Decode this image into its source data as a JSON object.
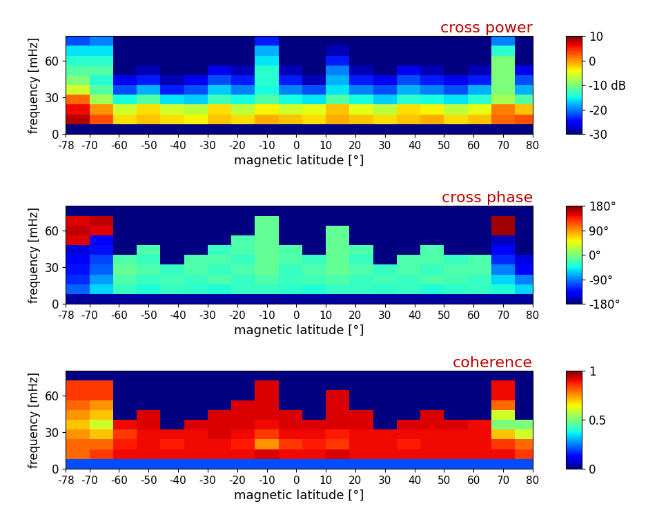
{
  "chart_data": [
    {
      "type": "heatmap",
      "title": "cross power",
      "x_label": "magnetic latitude [°]",
      "y_label": "frequency [mHz]",
      "xlim": [
        -78,
        80
      ],
      "ylim": [
        0,
        80
      ],
      "xticks": [
        -78,
        -70,
        -60,
        -50,
        -40,
        -30,
        -20,
        -10,
        0,
        10,
        20,
        30,
        40,
        50,
        60,
        70,
        80
      ],
      "yticks": [
        0,
        30,
        60
      ],
      "x_edges": [
        -78,
        -70,
        -62,
        -54,
        -46,
        -38,
        -30,
        -22,
        -14,
        -6,
        2,
        10,
        18,
        26,
        34,
        42,
        50,
        58,
        66,
        74,
        80
      ],
      "y_edges": [
        0,
        8,
        16,
        24,
        32,
        40,
        48,
        56,
        64,
        72,
        80
      ],
      "color_range": [
        -30,
        10
      ],
      "color_ticks": [
        10,
        0,
        {
          "value": -10,
          "label": "-10 dB"
        },
        -20,
        -30
      ],
      "cells": [
        [
          -30,
          -30,
          -30,
          -30,
          -30,
          -30,
          -30,
          -30,
          -30,
          -30,
          -30,
          -30,
          -30,
          -30,
          -30,
          -30,
          -30,
          -30,
          -30,
          -30
        ],
        [
          8,
          3,
          -3,
          -2,
          -3,
          -4,
          -2,
          -3,
          -1,
          -2,
          -3,
          -1,
          -2,
          -3,
          -2,
          -1,
          -3,
          -2,
          2,
          3
        ],
        [
          6,
          0,
          -6,
          -3,
          -6,
          -7,
          -3,
          -7,
          -4,
          -6,
          -5,
          -2,
          -5,
          -7,
          -3,
          -4,
          -7,
          -5,
          1,
          -2
        ],
        [
          2,
          -8,
          -15,
          -12,
          -16,
          -17,
          -13,
          -15,
          -12,
          -15,
          -16,
          -12,
          -15,
          -17,
          -14,
          -15,
          -16,
          -14,
          -8,
          -12
        ],
        [
          -6,
          -12,
          -22,
          -18,
          -24,
          -22,
          -17,
          -20,
          -15,
          -20,
          -22,
          -16,
          -20,
          -22,
          -18,
          -20,
          -22,
          -18,
          -10,
          -18
        ],
        [
          -10,
          -14,
          -26,
          -24,
          -28,
          -26,
          -22,
          -24,
          -14,
          -24,
          -28,
          -18,
          -24,
          -26,
          -22,
          -24,
          -26,
          -24,
          -10,
          -22
        ],
        [
          -12,
          -12,
          -30,
          -28,
          -30,
          -30,
          -26,
          -28,
          -14,
          -28,
          -30,
          -20,
          -28,
          -30,
          -26,
          -28,
          -30,
          -28,
          -10,
          -26
        ],
        [
          -14,
          -14,
          -30,
          -30,
          -30,
          -30,
          -30,
          -30,
          -16,
          -30,
          -30,
          -24,
          -30,
          -30,
          -30,
          -30,
          -30,
          -30,
          -10,
          -30
        ],
        [
          -16,
          -16,
          -30,
          -30,
          -30,
          -30,
          -30,
          -30,
          -18,
          -30,
          -30,
          -28,
          -30,
          -30,
          -30,
          -30,
          -30,
          -30,
          -14,
          -30
        ],
        [
          -22,
          -20,
          -30,
          -30,
          -30,
          -30,
          -30,
          -30,
          -24,
          -30,
          -30,
          -30,
          -30,
          -30,
          -30,
          -30,
          -30,
          -30,
          -20,
          -30
        ]
      ]
    },
    {
      "type": "heatmap",
      "title": "cross phase",
      "x_label": "magnetic latitude [°]",
      "y_label": "frequency [mHz]",
      "xlim": [
        -78,
        80
      ],
      "ylim": [
        0,
        80
      ],
      "xticks": [
        -78,
        -70,
        -60,
        -50,
        -40,
        -30,
        -20,
        -10,
        0,
        10,
        20,
        30,
        40,
        50,
        60,
        70,
        80
      ],
      "yticks": [
        0,
        30,
        60
      ],
      "x_edges": [
        -78,
        -70,
        -62,
        -54,
        -46,
        -38,
        -30,
        -22,
        -14,
        -6,
        2,
        10,
        18,
        26,
        34,
        42,
        50,
        58,
        66,
        74,
        80
      ],
      "y_edges": [
        0,
        8,
        16,
        24,
        32,
        40,
        48,
        56,
        64,
        72,
        80
      ],
      "color_range": [
        -180,
        180
      ],
      "color_ticks": [
        {
          "value": 180,
          "label": "180°"
        },
        {
          "value": 90,
          "label": "90°"
        },
        {
          "value": 0,
          "label": "0°"
        },
        {
          "value": -90,
          "label": "-90°"
        },
        {
          "value": -180,
          "label": "-180°"
        }
      ],
      "cells": [
        [
          -170,
          -170,
          -170,
          -170,
          -170,
          -170,
          -170,
          -170,
          -170,
          -170,
          -170,
          -170,
          -170,
          -170,
          -170,
          -170,
          -170,
          -170,
          -170,
          -170
        ],
        [
          -100,
          -60,
          -30,
          -40,
          -30,
          -35,
          -40,
          -30,
          -30,
          -35,
          -40,
          -30,
          -30,
          -35,
          -30,
          -40,
          -35,
          -30,
          -40,
          -60
        ],
        [
          -120,
          -80,
          -20,
          -30,
          -25,
          -30,
          -20,
          -30,
          -20,
          -30,
          -25,
          -20,
          -30,
          -25,
          -30,
          -20,
          -25,
          -30,
          -60,
          -90
        ],
        [
          -130,
          -100,
          -10,
          -20,
          -30,
          -20,
          -30,
          -20,
          -10,
          -30,
          -20,
          -10,
          -20,
          -30,
          -20,
          -30,
          -20,
          -20,
          -90,
          -140
        ],
        [
          -140,
          -110,
          -20,
          -30,
          null,
          -20,
          -20,
          -30,
          -10,
          -20,
          -30,
          -10,
          -30,
          null,
          -20,
          -20,
          -30,
          -20,
          -120,
          -150
        ],
        [
          -150,
          -130,
          null,
          -20,
          null,
          null,
          -30,
          -20,
          -10,
          -20,
          null,
          -10,
          -20,
          null,
          null,
          -20,
          null,
          null,
          -140,
          null
        ],
        [
          150,
          -140,
          null,
          null,
          null,
          null,
          null,
          -20,
          -10,
          null,
          null,
          -10,
          null,
          null,
          null,
          null,
          null,
          null,
          -160,
          null
        ],
        [
          160,
          150,
          null,
          null,
          null,
          null,
          null,
          null,
          -10,
          null,
          null,
          -10,
          null,
          null,
          null,
          null,
          null,
          null,
          170,
          null
        ],
        [
          150,
          160,
          null,
          null,
          null,
          null,
          null,
          null,
          -10,
          null,
          null,
          null,
          null,
          null,
          null,
          null,
          null,
          null,
          170,
          null
        ],
        [
          null,
          null,
          null,
          null,
          null,
          null,
          null,
          null,
          null,
          null,
          null,
          null,
          null,
          null,
          null,
          null,
          null,
          null,
          null,
          null
        ]
      ]
    },
    {
      "type": "heatmap",
      "title": "coherence",
      "x_label": "magnetic latitude [°]",
      "y_label": "frequency [mHz]",
      "xlim": [
        -78,
        80
      ],
      "ylim": [
        0,
        80
      ],
      "xticks": [
        -78,
        -70,
        -60,
        -50,
        -40,
        -30,
        -20,
        -10,
        0,
        10,
        20,
        30,
        40,
        50,
        60,
        70,
        80
      ],
      "yticks": [
        0,
        30,
        60
      ],
      "x_edges": [
        -78,
        -70,
        -62,
        -54,
        -46,
        -38,
        -30,
        -22,
        -14,
        -6,
        2,
        10,
        18,
        26,
        34,
        42,
        50,
        58,
        66,
        74,
        80
      ],
      "y_edges": [
        0,
        8,
        16,
        24,
        32,
        40,
        48,
        56,
        64,
        72,
        80
      ],
      "color_range": [
        0,
        1
      ],
      "color_ticks": [
        1,
        0.5,
        0
      ],
      "cells": [
        [
          0.2,
          0.2,
          0.2,
          0.2,
          0.2,
          0.2,
          0.2,
          0.2,
          0.2,
          0.2,
          0.2,
          0.2,
          0.2,
          0.2,
          0.2,
          0.2,
          0.2,
          0.2,
          0.2,
          0.2
        ],
        [
          0.8,
          0.85,
          0.9,
          0.9,
          0.9,
          0.9,
          0.9,
          0.9,
          0.92,
          0.9,
          0.9,
          0.92,
          0.9,
          0.9,
          0.9,
          0.9,
          0.9,
          0.9,
          0.9,
          0.85
        ],
        [
          0.8,
          0.8,
          0.88,
          0.9,
          0.88,
          0.9,
          0.9,
          0.88,
          0.75,
          0.85,
          0.88,
          0.85,
          0.9,
          0.9,
          0.88,
          0.9,
          0.9,
          0.9,
          0.85,
          0.8
        ],
        [
          0.75,
          0.7,
          0.85,
          0.9,
          0.9,
          0.9,
          0.92,
          0.9,
          0.85,
          0.9,
          0.9,
          0.88,
          0.9,
          0.9,
          0.9,
          0.9,
          0.9,
          0.9,
          0.7,
          0.6
        ],
        [
          0.7,
          0.6,
          0.9,
          0.92,
          null,
          0.92,
          0.92,
          0.92,
          0.9,
          0.92,
          0.92,
          0.92,
          0.92,
          null,
          0.92,
          0.92,
          0.92,
          0.9,
          0.5,
          0.5
        ],
        [
          0.75,
          0.7,
          null,
          0.92,
          null,
          null,
          0.92,
          0.92,
          0.92,
          0.92,
          null,
          0.92,
          0.92,
          null,
          null,
          0.92,
          null,
          null,
          0.6,
          null
        ],
        [
          0.8,
          0.75,
          null,
          null,
          null,
          null,
          null,
          0.92,
          0.92,
          null,
          null,
          0.92,
          null,
          null,
          null,
          null,
          null,
          null,
          0.8,
          null
        ],
        [
          0.85,
          0.85,
          null,
          null,
          null,
          null,
          null,
          null,
          0.92,
          null,
          null,
          0.92,
          null,
          null,
          null,
          null,
          null,
          null,
          0.9,
          null
        ],
        [
          0.85,
          0.85,
          null,
          null,
          null,
          null,
          null,
          null,
          0.92,
          null,
          null,
          null,
          null,
          null,
          null,
          null,
          null,
          null,
          0.9,
          null
        ],
        [
          null,
          null,
          null,
          null,
          null,
          null,
          null,
          null,
          null,
          null,
          null,
          null,
          null,
          null,
          null,
          null,
          null,
          null,
          null,
          null
        ]
      ]
    }
  ]
}
